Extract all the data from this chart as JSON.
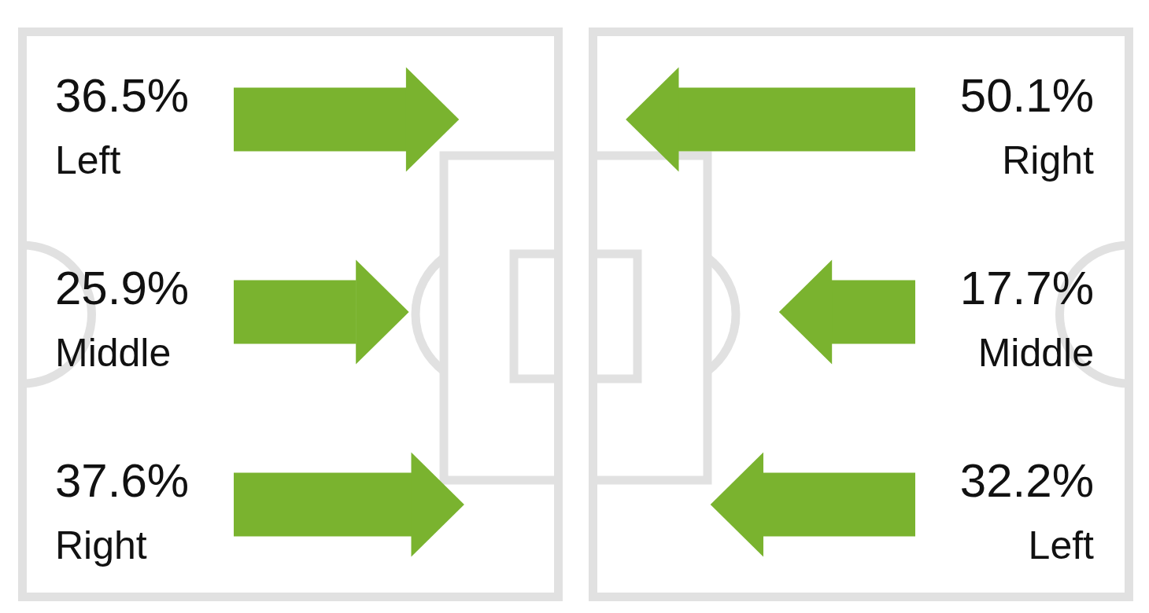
{
  "chart_data": [
    {
      "type": "bar",
      "orientation": "horizontal",
      "categories": [
        "Left",
        "Middle",
        "Right"
      ],
      "values": [
        36.5,
        25.9,
        37.6
      ],
      "value_labels": [
        "36.5%",
        "25.9%",
        "37.6%"
      ],
      "color": "#7ab32f",
      "tick_labels": "y"
    },
    {
      "type": "bar",
      "orientation": "horizontal",
      "categories": [
        "Right",
        "Middle",
        "Left"
      ],
      "values": [
        50.1,
        17.7,
        32.2
      ],
      "value_labels": [
        "50.1%",
        "17.7%",
        "32.2%"
      ],
      "color": "#7ab32f",
      "tick_labels": "y"
    }
  ]
}
